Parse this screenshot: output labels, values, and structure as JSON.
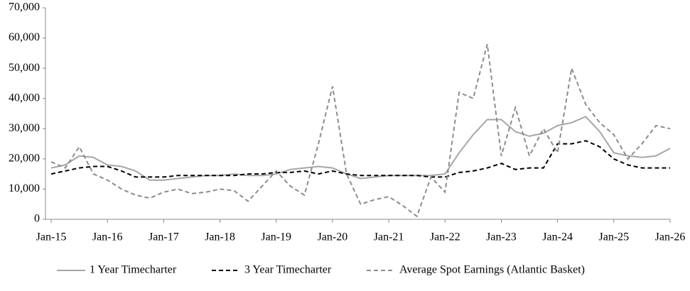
{
  "chart_data": {
    "type": "line",
    "categories": [
      "Jan-15",
      null,
      null,
      null,
      "Jan-16",
      null,
      null,
      null,
      "Jan-17",
      null,
      null,
      null,
      "Jan-18",
      null,
      null,
      null,
      "Jan-19",
      null,
      null,
      null,
      "Jan-20",
      null,
      null,
      null,
      "Jan-21",
      null,
      null,
      null,
      "Jan-22",
      null,
      null,
      null,
      "Jan-23",
      null,
      null,
      null,
      "Jan-24",
      null,
      null,
      null,
      "Jan-25",
      null,
      null,
      null,
      "Jan-26"
    ],
    "series": [
      {
        "name": "1 Year Timecharter",
        "color": "#a6a6a6",
        "style": "solid",
        "values": [
          17000,
          18000,
          21000,
          20500,
          18000,
          17500,
          16000,
          13000,
          13000,
          13500,
          14000,
          14500,
          14500,
          15000,
          14500,
          14500,
          15000,
          16500,
          17000,
          17500,
          17000,
          15000,
          13500,
          14000,
          14500,
          14500,
          14500,
          14500,
          15000,
          22000,
          28000,
          33000,
          33000,
          29000,
          27500,
          28500,
          31000,
          32000,
          34000,
          29000,
          22000,
          21000,
          20500,
          21000,
          23500
        ]
      },
      {
        "name": "3 Year Timecharter",
        "color": "#000000",
        "style": "dashed",
        "values": [
          15000,
          16000,
          17000,
          17500,
          17500,
          16000,
          14000,
          14000,
          14000,
          14500,
          14500,
          14500,
          14500,
          14500,
          15000,
          15000,
          15500,
          15500,
          16000,
          15000,
          16000,
          15000,
          14500,
          14500,
          14500,
          14500,
          14500,
          14000,
          14000,
          15500,
          16000,
          17000,
          18500,
          16500,
          17000,
          17000,
          25000,
          25000,
          26000,
          24000,
          20000,
          18000,
          17000,
          17000,
          17000
        ]
      },
      {
        "name": "Average Spot Earnings (Atlantic Basket)",
        "color": "#8c8c8c",
        "style": "dashed",
        "values": [
          19000,
          17000,
          24000,
          15000,
          13000,
          10000,
          8000,
          7000,
          9000,
          10000,
          8500,
          9000,
          10000,
          9500,
          6000,
          11000,
          16000,
          11000,
          8000,
          25000,
          44000,
          15000,
          5000,
          6500,
          7500,
          4500,
          1000,
          14000,
          9000,
          42000,
          40000,
          58000,
          21000,
          37000,
          21000,
          30000,
          22000,
          50000,
          38000,
          32000,
          28000,
          20000,
          25000,
          31000,
          30000
        ]
      }
    ],
    "ylim": [
      0,
      70000
    ],
    "yticks": [
      0,
      {
        "value": 10000,
        "label": "10,000"
      },
      {
        "value": 20000,
        "label": "20,000"
      },
      {
        "value": 30000,
        "label": "30,000"
      },
      {
        "value": 40000,
        "label": "40,000"
      },
      {
        "value": 50000,
        "label": "50,000"
      },
      {
        "value": 60000,
        "label": "60,000"
      },
      {
        "value": 70000,
        "label": "70,000"
      }
    ],
    "legend": "bottom"
  }
}
